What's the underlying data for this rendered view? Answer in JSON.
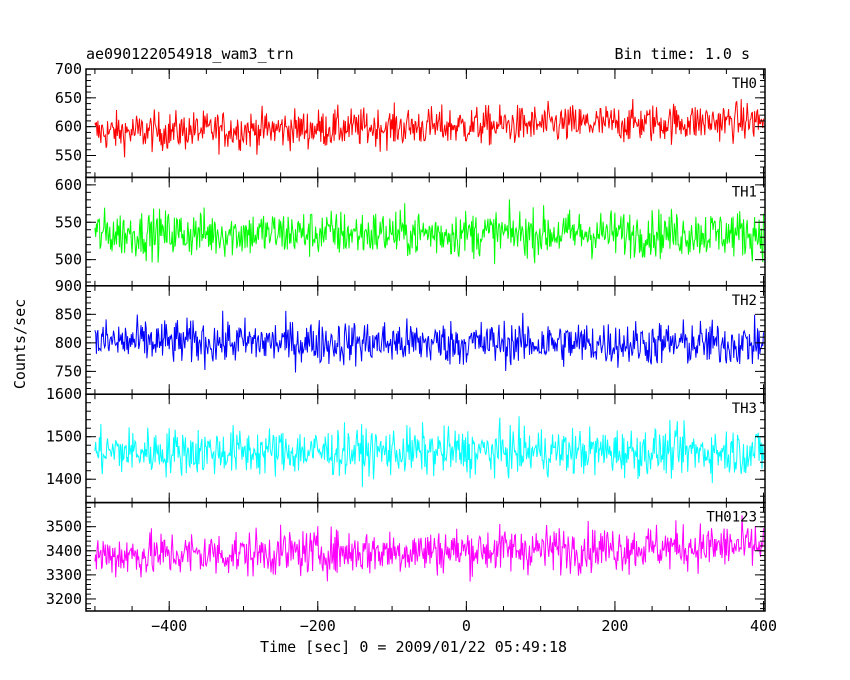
{
  "header": {
    "title": "ae090122054918_wam3_trn",
    "bin_time": "Bin time: 1.0 s"
  },
  "chart_data": {
    "type": "line",
    "title": "ae090122054918_wam3_trn",
    "xlabel": "Time [sec] 0 = 2009/01/22 05:49:18",
    "ylabel": "Counts/sec",
    "xlim": [
      -512,
      402
    ],
    "x_ticks": [
      -400,
      -200,
      0,
      200,
      400
    ],
    "x_tick_labels": [
      "−400",
      "−200",
      "0",
      "200",
      "400"
    ],
    "grid": false,
    "panels": [
      {
        "name": "TH0",
        "color": "#ff0000",
        "ylim": [
          512,
          700
        ],
        "y_ticks": [
          550,
          600,
          650,
          700
        ],
        "y_tick_labels": [
          "550",
          "600",
          "650",
          "700"
        ],
        "x_range": [
          -500,
          400
        ],
        "mean_start": 590,
        "mean_end": 610,
        "spread": 30
      },
      {
        "name": "TH1",
        "color": "#00ff00",
        "ylim": [
          465,
          610
        ],
        "y_ticks": [
          500,
          550,
          600
        ],
        "y_tick_labels": [
          "500",
          "550",
          "600"
        ],
        "x_range": [
          -500,
          400
        ],
        "mean_start": 535,
        "mean_end": 535,
        "spread": 28
      },
      {
        "name": "TH2",
        "color": "#0000ff",
        "ylim": [
          710,
          900
        ],
        "y_ticks": [
          750,
          800,
          850,
          900
        ],
        "y_tick_labels": [
          "750",
          "800",
          "850",
          "900"
        ],
        "x_range": [
          -500,
          400
        ],
        "mean_start": 802,
        "mean_end": 798,
        "spread": 35
      },
      {
        "name": "TH3",
        "color": "#00ffff",
        "ylim": [
          1345,
          1600
        ],
        "y_ticks": [
          1400,
          1500,
          1600
        ],
        "y_tick_labels": [
          "1400",
          "1500",
          "1600"
        ],
        "x_range": [
          -500,
          400
        ],
        "mean_start": 1465,
        "mean_end": 1465,
        "spread": 50
      },
      {
        "name": "TH0123",
        "color": "#ff00ff",
        "ylim": [
          3150,
          3600
        ],
        "y_ticks": [
          3200,
          3300,
          3400,
          3500
        ],
        "y_tick_labels": [
          "3200",
          "3300",
          "3400",
          "3500"
        ],
        "x_range": [
          -500,
          400
        ],
        "mean_start": 3380,
        "mean_end": 3420,
        "spread": 85
      }
    ]
  }
}
